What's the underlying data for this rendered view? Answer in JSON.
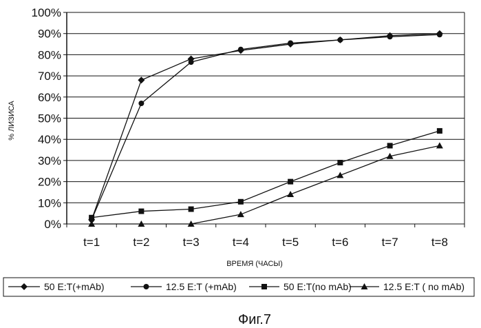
{
  "chart_data": {
    "type": "line",
    "title": "",
    "xlabel": "ВРЕМЯ (ЧАСЫ)",
    "ylabel": "% ЛИЗИСА",
    "ylim": [
      0,
      100
    ],
    "yticks": [
      "0%",
      "10%",
      "20%",
      "30%",
      "40%",
      "50%",
      "60%",
      "70%",
      "80%",
      "90%",
      "100%"
    ],
    "categories": [
      "t=1",
      "t=2",
      "t=3",
      "t=4",
      "t=5",
      "t=6",
      "t=7",
      "t=8"
    ],
    "grid": "horizontal",
    "legend_position": "bottom",
    "series": [
      {
        "name": "50 E:T(+mAb)",
        "marker": "diamond",
        "values": [
          2,
          68,
          78,
          82,
          85,
          87,
          89,
          90
        ]
      },
      {
        "name": "12.5 E:T (+mAb)",
        "marker": "circle",
        "values": [
          2,
          57,
          76.5,
          82.5,
          85.5,
          87,
          88.5,
          89.5
        ]
      },
      {
        "name": "50 E:T(no mAb)",
        "marker": "square",
        "values": [
          3,
          6,
          7,
          10.5,
          20,
          29,
          37,
          44
        ]
      },
      {
        "name": "12.5 E:T ( no mAb)",
        "marker": "triangle",
        "values": [
          0,
          0,
          0,
          4.5,
          14,
          23,
          32,
          37
        ]
      }
    ]
  },
  "caption": "Фиг.7"
}
